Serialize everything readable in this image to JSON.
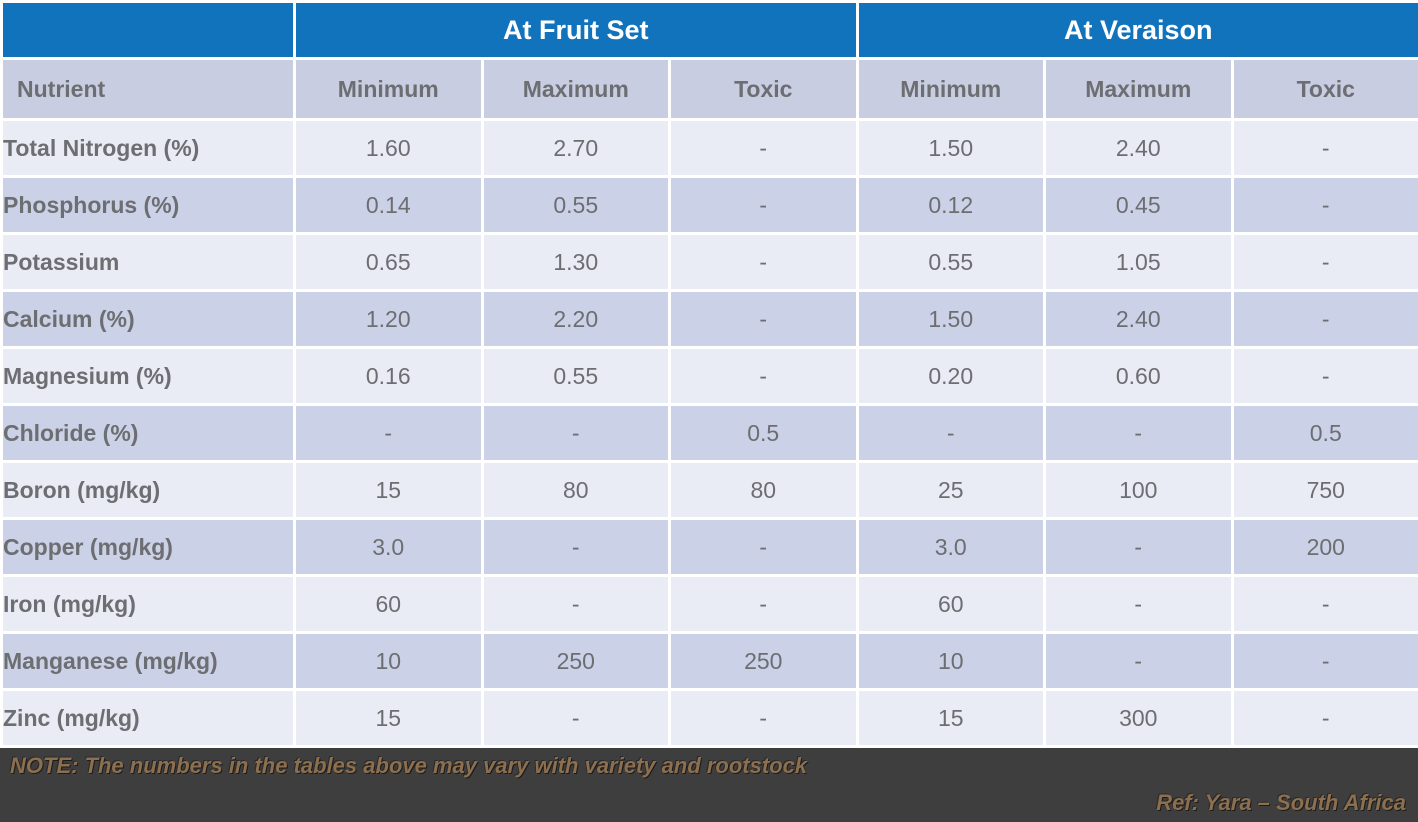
{
  "table": {
    "group_headers": [
      "At Fruit Set",
      "At Veraison"
    ],
    "columns": [
      "Nutrient",
      "Minimum",
      "Maximum",
      "Toxic",
      "Minimum",
      "Maximum",
      "Toxic"
    ],
    "rows": [
      {
        "nutrient": "Total Nitrogen (%)",
        "values": [
          "1.60",
          "2.70",
          "-",
          "1.50",
          "2.40",
          "-"
        ]
      },
      {
        "nutrient": "Phosphorus (%)",
        "values": [
          "0.14",
          "0.55",
          "-",
          "0.12",
          "0.45",
          "-"
        ]
      },
      {
        "nutrient": "Potassium",
        "values": [
          "0.65",
          "1.30",
          "-",
          "0.55",
          "1.05",
          "-"
        ]
      },
      {
        "nutrient": "Calcium (%)",
        "values": [
          "1.20",
          "2.20",
          "-",
          "1.50",
          "2.40",
          "-"
        ]
      },
      {
        "nutrient": "Magnesium (%)",
        "values": [
          "0.16",
          "0.55",
          "-",
          "0.20",
          "0.60",
          "-"
        ]
      },
      {
        "nutrient": "Chloride (%)",
        "values": [
          "-",
          "-",
          "0.5",
          "-",
          "-",
          "0.5"
        ]
      },
      {
        "nutrient": "Boron (mg/kg)",
        "values": [
          "15",
          "80",
          "80",
          "25",
          "100",
          "750"
        ]
      },
      {
        "nutrient": "Copper (mg/kg)",
        "values": [
          "3.0",
          "-",
          "-",
          "3.0",
          "-",
          "200"
        ]
      },
      {
        "nutrient": "Iron (mg/kg)",
        "values": [
          "60",
          "-",
          "-",
          "60",
          "-",
          "-"
        ]
      },
      {
        "nutrient": "Manganese (mg/kg)",
        "values": [
          "10",
          "250",
          "250",
          "10",
          "-",
          "-"
        ]
      },
      {
        "nutrient": "Zinc (mg/kg)",
        "values": [
          "15",
          "-",
          "-",
          "15",
          "300",
          "-"
        ]
      }
    ]
  },
  "footer": {
    "note": "NOTE: The numbers in the tables above may vary with variety and rootstock",
    "ref": "Ref: Yara – South Africa"
  },
  "colors": {
    "header_blue": "#1173BC",
    "column_header_bg": "#C8CDE1",
    "row_light": "#E9EBF5",
    "row_dark": "#CBD1E7",
    "text_gray": "#6D6E71",
    "footer_bg": "#3F3E3E",
    "footer_text": "#8C6F4F"
  }
}
